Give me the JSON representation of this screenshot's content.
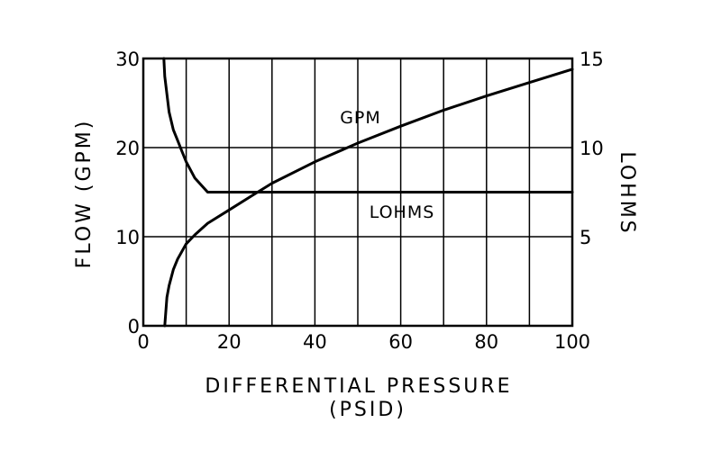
{
  "chart_data": {
    "type": "line",
    "title": "",
    "xlabel": "DIFFERENTIAL PRESSURE",
    "xlabel_unit": "(PSID)",
    "ylabel_left": "FLOW    (GPM)",
    "ylabel_right": "LOHMS",
    "xlim": [
      0,
      100
    ],
    "ylim_left": [
      0,
      30
    ],
    "ylim_right": [
      0,
      15
    ],
    "x_ticks": [
      0,
      20,
      40,
      60,
      80,
      100
    ],
    "x_tick_labels": [
      "0",
      "20",
      "40",
      "60",
      "80",
      "100"
    ],
    "y_ticks_left": [
      0,
      10,
      20,
      30
    ],
    "y_tick_labels_left": [
      "0",
      "10",
      "20",
      "30"
    ],
    "y_ticks_right": [
      5,
      10,
      15
    ],
    "y_tick_labels_right": [
      "5",
      "10",
      "15"
    ],
    "grid": true,
    "grid_x_every": 10,
    "grid_y_every": 10,
    "series": [
      {
        "name": "GPM",
        "axis": "left",
        "x": [
          5,
          5.5,
          6,
          7,
          8,
          10,
          12,
          15,
          20,
          25,
          30,
          40,
          50,
          60,
          70,
          80,
          90,
          100
        ],
        "y": [
          0,
          3.2,
          4.5,
          6.3,
          7.5,
          9.2,
          10.2,
          11.5,
          13.0,
          14.5,
          16.0,
          18.4,
          20.5,
          22.4,
          24.2,
          25.8,
          27.3,
          28.8
        ]
      },
      {
        "name": "LOHMS",
        "axis": "right",
        "x": [
          4.8,
          5,
          6,
          7,
          8,
          9,
          10,
          12,
          15,
          20,
          40,
          60,
          80,
          100
        ],
        "y": [
          15,
          14.0,
          12.0,
          11.0,
          10.4,
          9.8,
          9.2,
          8.3,
          7.5,
          7.5,
          7.5,
          7.5,
          7.5,
          7.5
        ]
      }
    ]
  }
}
